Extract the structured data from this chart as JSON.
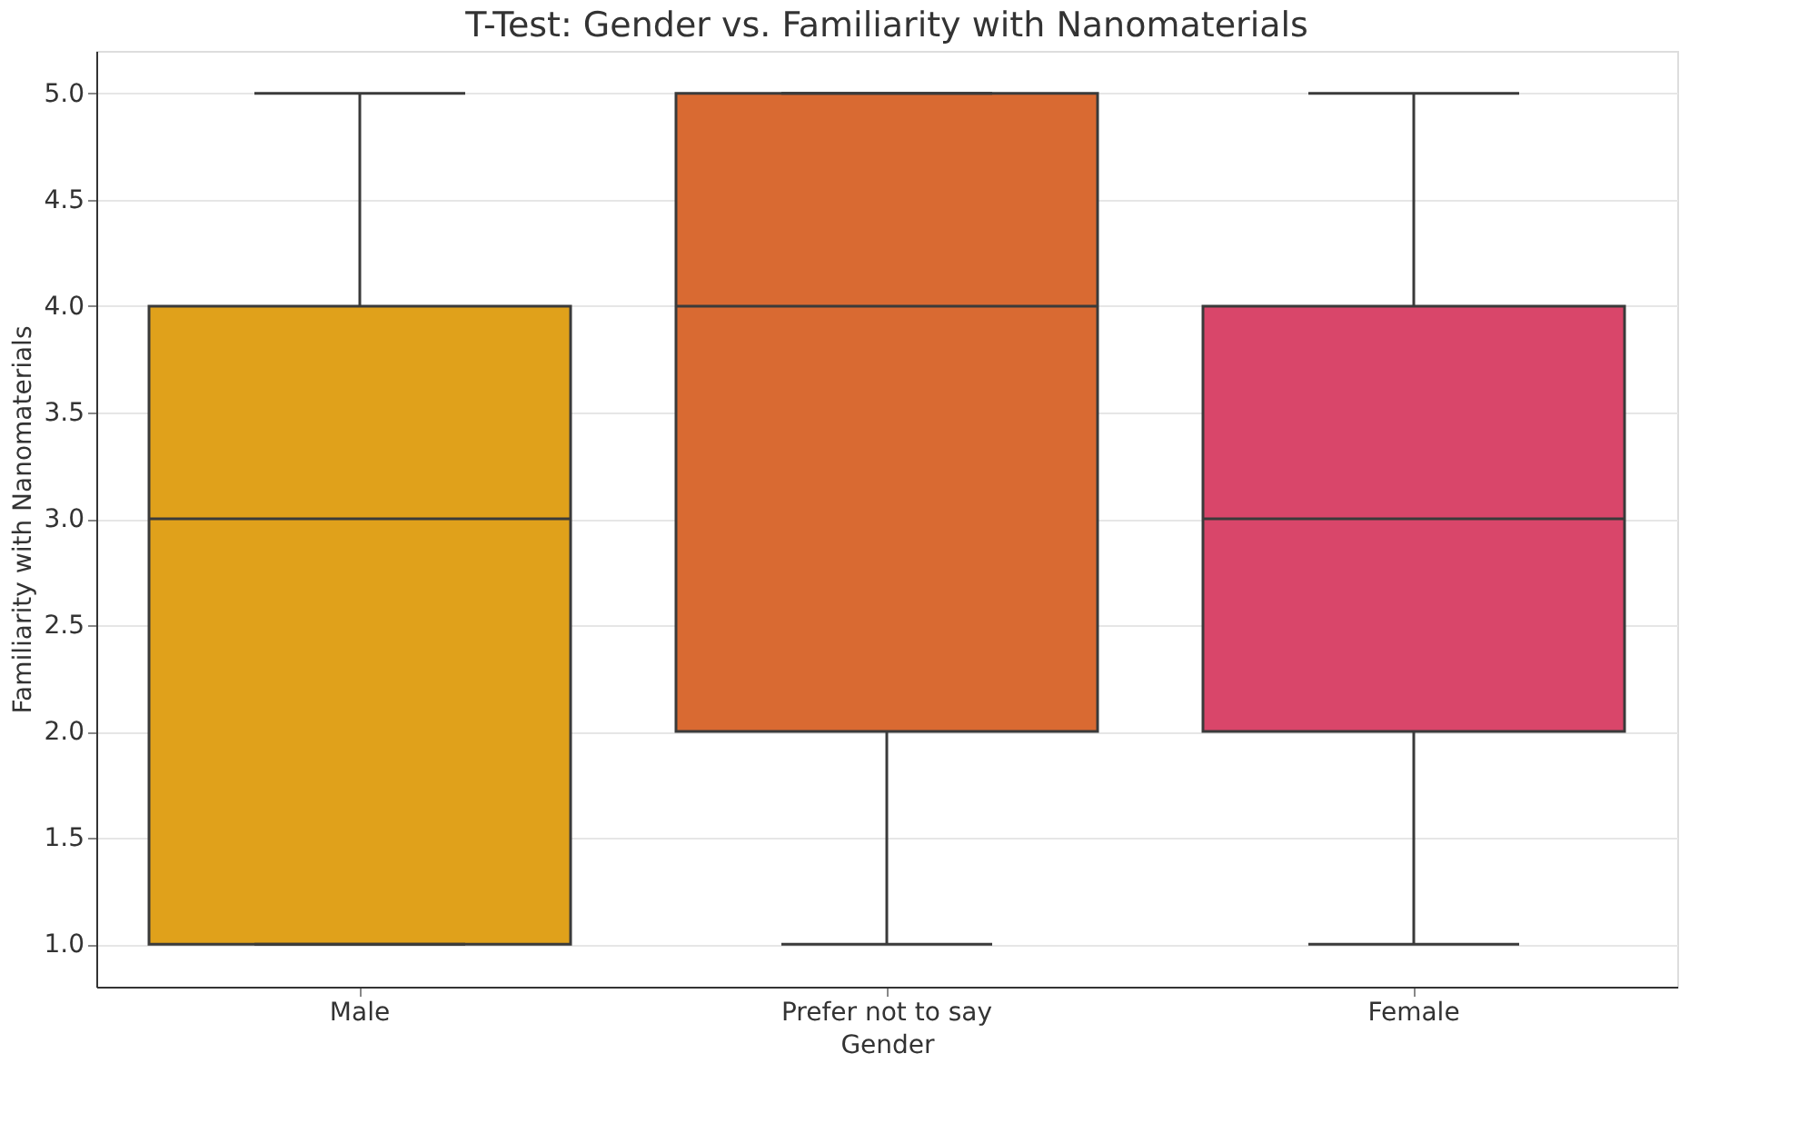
{
  "chart_data": {
    "type": "box",
    "title": "T-Test: Gender vs. Familiarity with Nanomaterials",
    "xlabel": "Gender",
    "ylabel": "Familiarity with Nanomaterials",
    "categories": [
      "Male",
      "Prefer not to say",
      "Female"
    ],
    "boxes": [
      {
        "low": 1,
        "q1": 1,
        "median": 3,
        "q3": 4,
        "high": 5
      },
      {
        "low": 1,
        "q1": 2,
        "median": 4,
        "q3": 5,
        "high": 5
      },
      {
        "low": 1,
        "q1": 2,
        "median": 3,
        "q3": 4,
        "high": 5
      }
    ],
    "colors": [
      "#e0a11b",
      "#d96a32",
      "#d9466a"
    ],
    "ylim": [
      0.8,
      5.2
    ],
    "yticks": [
      {
        "value": 1,
        "label": "1.0"
      },
      1.5,
      {
        "value": 2,
        "label": "2.0"
      },
      2.5,
      {
        "value": 3,
        "label": "3.0"
      },
      3.5,
      {
        "value": 4,
        "label": "4.0"
      },
      4.5,
      {
        "value": 5,
        "label": "5.0"
      }
    ],
    "grid": "y"
  }
}
